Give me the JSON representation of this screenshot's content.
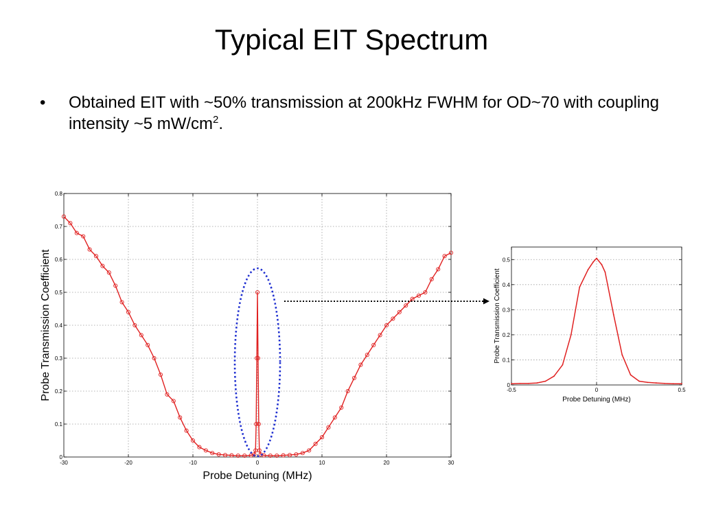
{
  "slide": {
    "title": "Typical EIT Spectrum",
    "bullet": {
      "symbol": "•",
      "text": "Obtained EIT with ~50% transmission at 200kHz FWHM for OD~70 with coupling intensity ~5 mW/cm",
      "superscript": "2",
      "suffix": "."
    }
  },
  "colors": {
    "series": "#e02020",
    "highlight": "#1f2fd0",
    "grid": "#9a9a9a"
  },
  "chart_data": [
    {
      "type": "line",
      "xlabel": "Probe Detuning (MHz)",
      "ylabel": "Probe Transmission Coefficient",
      "xlim": [
        -30,
        30
      ],
      "ylim": [
        0,
        0.8
      ],
      "xticks": [
        -30,
        -20,
        -10,
        0,
        10,
        20,
        30
      ],
      "yticks": [
        0,
        0.1,
        0.2,
        0.3,
        0.4,
        0.5,
        0.6,
        0.7,
        0.8
      ],
      "grid": true,
      "markers": "circle",
      "series": [
        {
          "x": [
            -30,
            -29,
            -28,
            -27,
            -26,
            -25,
            -24,
            -23,
            -22,
            -21,
            -20,
            -19,
            -18,
            -17,
            -16,
            -15,
            -14,
            -13,
            -12,
            -11,
            -10,
            -9,
            -8,
            -7,
            -6,
            -5,
            -4,
            -3,
            -2,
            -1,
            -0.5,
            -0.3,
            -0.2,
            -0.1,
            0,
            0.1,
            0.2,
            0.3,
            0.5,
            1,
            2,
            3,
            4,
            5,
            6,
            7,
            8,
            9,
            10,
            11,
            12,
            13,
            14,
            15,
            16,
            17,
            18,
            19,
            20,
            21,
            22,
            23,
            24,
            25,
            26,
            27,
            28,
            29,
            30
          ],
          "y": [
            0.73,
            0.71,
            0.68,
            0.67,
            0.63,
            0.61,
            0.58,
            0.56,
            0.52,
            0.47,
            0.44,
            0.4,
            0.37,
            0.34,
            0.3,
            0.25,
            0.19,
            0.17,
            0.12,
            0.08,
            0.05,
            0.03,
            0.02,
            0.012,
            0.008,
            0.006,
            0.005,
            0.004,
            0.004,
            0.005,
            0.008,
            0.02,
            0.1,
            0.3,
            0.5,
            0.3,
            0.1,
            0.02,
            0.008,
            0.005,
            0.004,
            0.004,
            0.005,
            0.006,
            0.008,
            0.012,
            0.02,
            0.04,
            0.06,
            0.09,
            0.12,
            0.15,
            0.2,
            0.24,
            0.28,
            0.31,
            0.34,
            0.37,
            0.4,
            0.42,
            0.44,
            0.46,
            0.48,
            0.49,
            0.5,
            0.54,
            0.57,
            0.61,
            0.62
          ]
        }
      ],
      "annotations": [
        {
          "type": "ellipse",
          "target": "central EIT peak near 0 MHz"
        },
        {
          "type": "arrow",
          "target": "zoomed inset"
        }
      ]
    },
    {
      "type": "line",
      "xlabel": "Probe Detuning (MHz)",
      "ylabel": "Probe Transmission Coefficient",
      "xlim": [
        -0.5,
        0.5
      ],
      "ylim": [
        0,
        0.55
      ],
      "xticks": [
        -0.5,
        0,
        0.5
      ],
      "yticks": [
        0,
        0.1,
        0.2,
        0.3,
        0.4,
        0.5
      ],
      "grid": true,
      "series": [
        {
          "x": [
            -0.5,
            -0.45,
            -0.4,
            -0.35,
            -0.3,
            -0.25,
            -0.2,
            -0.15,
            -0.1,
            -0.05,
            -0.02,
            0,
            0.03,
            0.05,
            0.1,
            0.15,
            0.2,
            0.25,
            0.3,
            0.35,
            0.4,
            0.45,
            0.5
          ],
          "y": [
            0.005,
            0.006,
            0.006,
            0.008,
            0.015,
            0.035,
            0.08,
            0.2,
            0.39,
            0.46,
            0.49,
            0.505,
            0.48,
            0.45,
            0.28,
            0.12,
            0.04,
            0.015,
            0.01,
            0.008,
            0.006,
            0.005,
            0.005
          ]
        }
      ]
    }
  ]
}
